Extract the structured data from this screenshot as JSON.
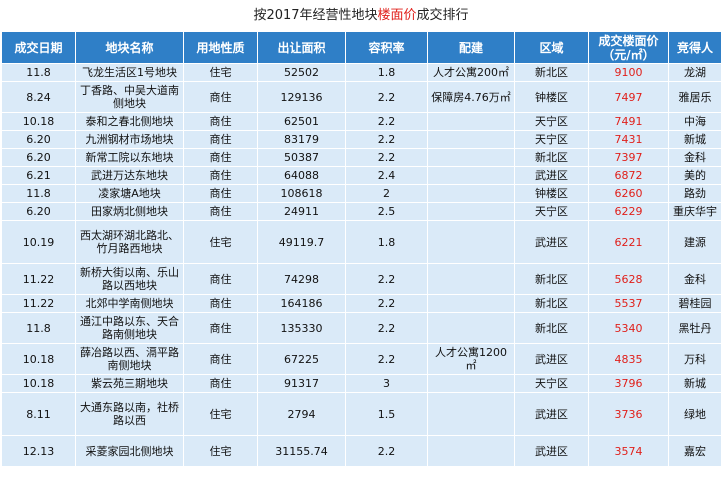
{
  "title": {
    "prefix": "按2017年经营性地块",
    "highlight": "楼面价",
    "suffix": "成交排行"
  },
  "colors": {
    "header_bg": "#2f7fc7",
    "row_bg": "#daeaf8",
    "price": "#e0201b"
  },
  "headers": [
    "成交日期",
    "地块名称",
    "用地性质",
    "出让面积",
    "容积率",
    "配建",
    "区域",
    "成交楼面价\n（元/㎡）",
    "竞得人"
  ],
  "rows": [
    {
      "date": "11.8",
      "name": "飞龙生活区1号地块",
      "use": "住宅",
      "area": "52502",
      "far": "1.8",
      "extra": "人才公寓200㎡",
      "district": "新北区",
      "price": "9100",
      "winner": "龙湖"
    },
    {
      "date": "8.24",
      "name": "丁香路、中吴大道南侧地块",
      "use": "商住",
      "area": "129136",
      "far": "2.2",
      "extra": "保障房4.76万㎡",
      "district": "钟楼区",
      "price": "7497",
      "winner": "雅居乐"
    },
    {
      "date": "10.18",
      "name": "泰和之春北侧地块",
      "use": "商住",
      "area": "62501",
      "far": "2.2",
      "extra": "",
      "district": "天宁区",
      "price": "7491",
      "winner": "中海"
    },
    {
      "date": "6.20",
      "name": "九洲钢材市场地块",
      "use": "商住",
      "area": "83179",
      "far": "2.2",
      "extra": "",
      "district": "天宁区",
      "price": "7431",
      "winner": "新城"
    },
    {
      "date": "6.20",
      "name": "新常工院以东地块",
      "use": "商住",
      "area": "50387",
      "far": "2.2",
      "extra": "",
      "district": "新北区",
      "price": "7397",
      "winner": "金科"
    },
    {
      "date": "6.21",
      "name": "武进万达东地块",
      "use": "商住",
      "area": "64088",
      "far": "2.4",
      "extra": "",
      "district": "武进区",
      "price": "6872",
      "winner": "美的"
    },
    {
      "date": "11.8",
      "name": "凌家塘A地块",
      "use": "商住",
      "area": "108618",
      "far": "2",
      "extra": "",
      "district": "钟楼区",
      "price": "6260",
      "winner": "路劲"
    },
    {
      "date": "6.20",
      "name": "田家炳北侧地块",
      "use": "商住",
      "area": "24911",
      "far": "2.5",
      "extra": "",
      "district": "天宁区",
      "price": "6229",
      "winner": "重庆华宇"
    },
    {
      "date": "10.19",
      "name": "西太湖环湖北路北、竹月路西地块",
      "use": "住宅",
      "area": "49119.7",
      "far": "1.8",
      "extra": "",
      "district": "武进区",
      "price": "6221",
      "winner": "建源"
    },
    {
      "date": "11.22",
      "name": "新桥大街以南、乐山路以西地块",
      "use": "商住",
      "area": "74298",
      "far": "2.2",
      "extra": "",
      "district": "新北区",
      "price": "5628",
      "winner": "金科"
    },
    {
      "date": "11.22",
      "name": "北郊中学南侧地块",
      "use": "商住",
      "area": "164186",
      "far": "2.2",
      "extra": "",
      "district": "新北区",
      "price": "5537",
      "winner": "碧桂园"
    },
    {
      "date": "11.8",
      "name": "通江中路以东、天合路南侧地块",
      "use": "商住",
      "area": "135330",
      "far": "2.2",
      "extra": "",
      "district": "新北区",
      "price": "5340",
      "winner": "黑牡丹"
    },
    {
      "date": "10.18",
      "name": "薛冶路以西、滆平路南侧地块",
      "use": "商住",
      "area": "67225",
      "far": "2.2",
      "extra": "人才公寓1200㎡",
      "district": "武进区",
      "price": "4835",
      "winner": "万科"
    },
    {
      "date": "10.18",
      "name": "紫云苑三期地块",
      "use": "商住",
      "area": "91317",
      "far": "3",
      "extra": "",
      "district": "天宁区",
      "price": "3796",
      "winner": "新城"
    },
    {
      "date": "8.11",
      "name": "大通东路以南，社桥路以西",
      "use": "住宅",
      "area": "2794",
      "far": "1.5",
      "extra": "",
      "district": "武进区",
      "price": "3736",
      "winner": "绿地"
    },
    {
      "date": "12.13",
      "name": "采菱家园北侧地块",
      "use": "住宅",
      "area": "31155.74",
      "far": "2.2",
      "extra": "",
      "district": "武进区",
      "price": "3574",
      "winner": "嘉宏"
    }
  ]
}
